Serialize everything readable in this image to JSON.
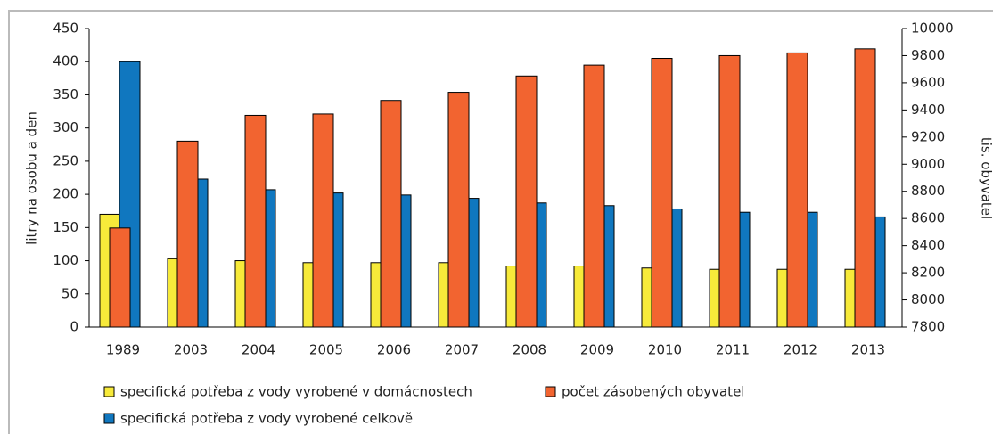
{
  "chart_data": {
    "type": "bar",
    "y_label": "litry na osobu a den",
    "y2_label": "tis. obyvatel",
    "categories": [
      "1989",
      "2003",
      "2004",
      "2005",
      "2006",
      "2007",
      "2008",
      "2009",
      "2010",
      "2011",
      "2012",
      "2013"
    ],
    "series": [
      {
        "name": "specifická potřeba z vody vyrobené v domácnostech",
        "color": "#f7ea3a",
        "values": [
          170,
          103,
          100,
          97,
          97,
          97,
          92,
          92,
          89,
          87,
          87,
          87
        ]
      },
      {
        "name": "specifická potřeba z vody vyrobené celkově",
        "color": "#1077bf",
        "values": [
          400,
          223,
          207,
          202,
          199,
          194,
          187,
          183,
          178,
          173,
          173,
          166
        ]
      },
      {
        "name": "počet zásobených obyvatel",
        "color": "#f26430",
        "axis": "y2",
        "values": [
          8530,
          9170,
          9360,
          9370,
          9470,
          9530,
          9650,
          9730,
          9780,
          9800,
          9820,
          9850
        ]
      }
    ],
    "ylim": [
      0,
      450
    ],
    "yticks": [
      0,
      50,
      100,
      150,
      200,
      250,
      300,
      350,
      400,
      450
    ],
    "y2lim": [
      7800,
      10000
    ],
    "y2ticks": [
      7800,
      8000,
      8200,
      8400,
      8600,
      8800,
      9000,
      9200,
      9400,
      9600,
      9800,
      10000
    ]
  }
}
